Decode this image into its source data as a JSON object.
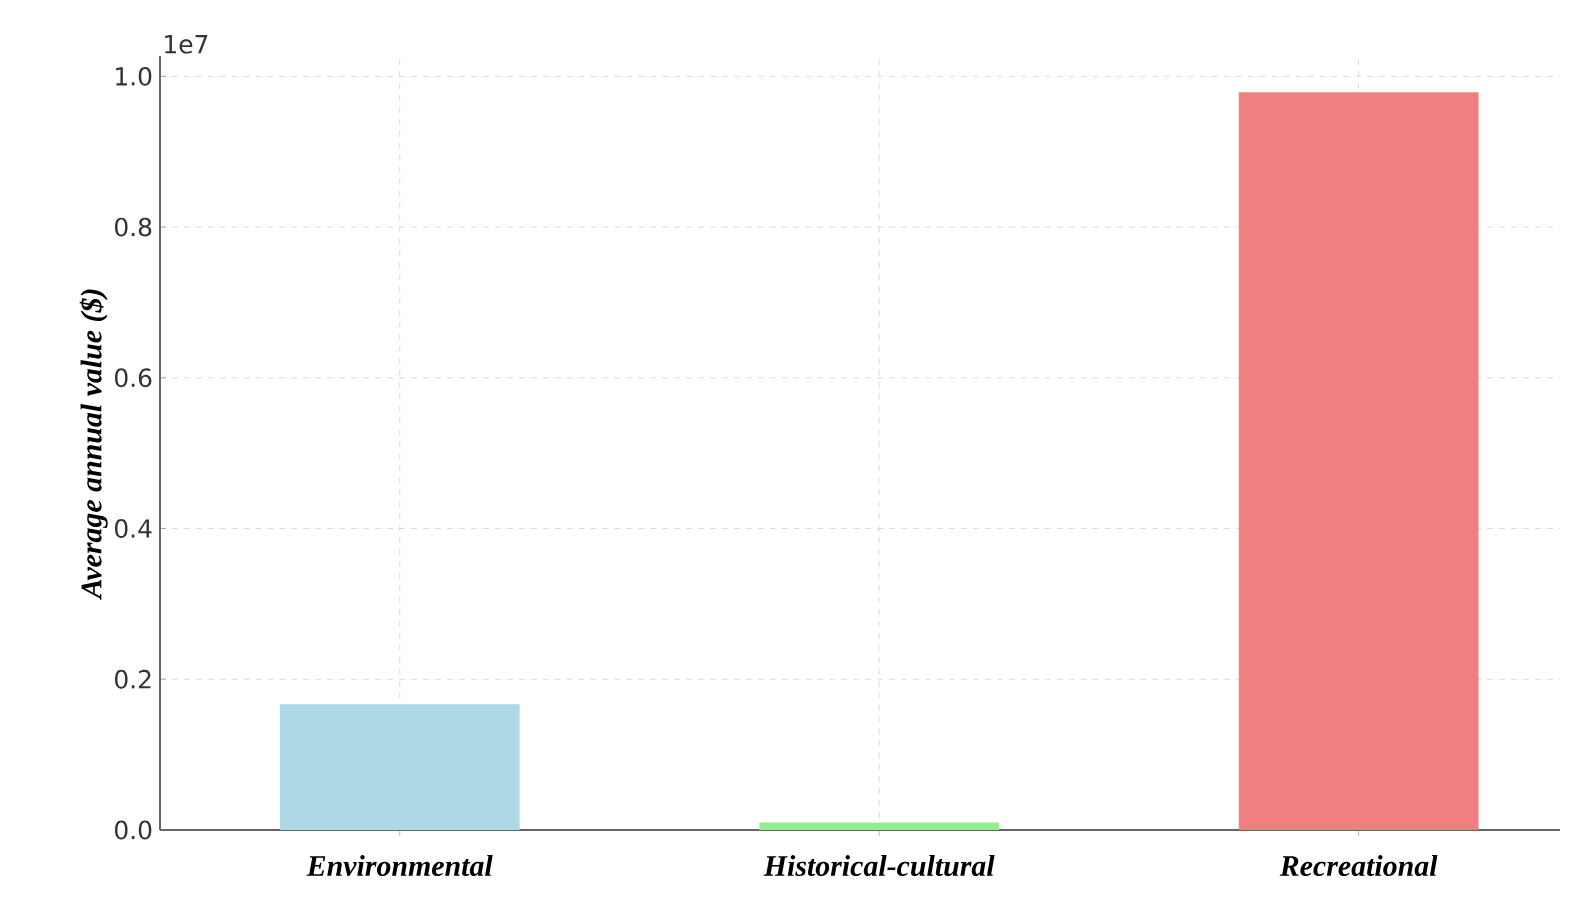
{
  "chart_data": {
    "type": "bar",
    "ylabel": "Average annual value ($)",
    "categories": [
      "Environmental",
      "Historical-cultural",
      "Recreational"
    ],
    "values": [
      0.167,
      0.01,
      0.979
    ],
    "colors": [
      "#add8e6",
      "#90ee90",
      "#f08080"
    ],
    "ylim": [
      0,
      1.027
    ],
    "yticks": [
      {
        "value": 0,
        "label": "0.0"
      },
      {
        "value": 0.2,
        "label": "0.2"
      },
      {
        "value": 0.4,
        "label": "0.4"
      },
      {
        "value": 0.6,
        "label": "0.6"
      },
      {
        "value": 0.8,
        "label": "0.8"
      },
      {
        "value": 1.0,
        "label": "1.0"
      }
    ],
    "annotations": [
      "1e7"
    ],
    "grid": true
  }
}
